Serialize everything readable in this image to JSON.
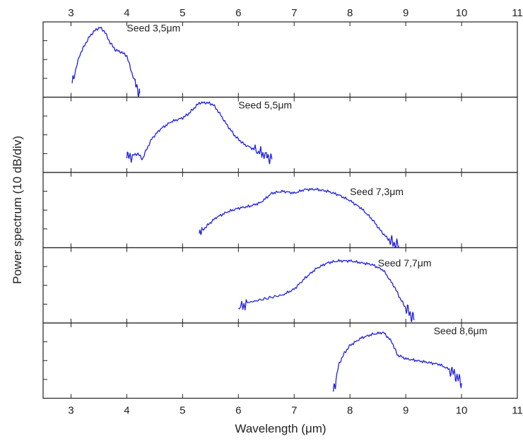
{
  "chart_data": {
    "type": "line",
    "xlabel": "Wavelength (μm)",
    "ylabel": "Power spectrum (10 dB/div)",
    "xlim": [
      2.5,
      11
    ],
    "xticks": [
      3,
      4,
      5,
      6,
      7,
      8,
      9,
      10,
      11
    ],
    "xtick_labels": [
      "3",
      "4",
      "5",
      "6",
      "7",
      "8",
      "9",
      "10",
      "11"
    ],
    "ylim": [
      0,
      40
    ],
    "ytick_step": 10,
    "color": "#1f1fe0",
    "panels": [
      {
        "label": "Seed 3,5μm",
        "label_x": 4.0,
        "label_y": 35,
        "series": {
          "x": [
            3.02,
            3.05,
            3.08,
            3.15,
            3.25,
            3.35,
            3.45,
            3.52,
            3.6,
            3.7,
            3.8,
            3.9,
            4.0,
            4.05,
            4.1,
            4.15,
            4.2,
            4.23
          ],
          "y": [
            8,
            10,
            14,
            22,
            28,
            33,
            36,
            37,
            35,
            29,
            25,
            24,
            22,
            17,
            12,
            8,
            4,
            2
          ]
        }
      },
      {
        "label": "Seed 5,5μm",
        "label_x": 6.0,
        "label_y": 34,
        "series": {
          "x": [
            4.0,
            4.1,
            4.2,
            4.28,
            4.35,
            4.45,
            4.6,
            4.8,
            5.0,
            5.1,
            5.2,
            5.3,
            5.45,
            5.55,
            5.65,
            5.8,
            5.95,
            6.1,
            6.3,
            6.5,
            6.6
          ],
          "y": [
            8,
            9,
            10,
            7,
            12,
            18,
            23,
            27,
            29,
            31,
            34,
            37,
            37,
            36,
            32,
            25,
            19,
            15,
            12,
            9,
            7
          ]
        }
      },
      {
        "label": "Seed 7,3μm",
        "label_x": 8.0,
        "label_y": 28,
        "series": {
          "x": [
            5.3,
            5.35,
            5.45,
            5.6,
            5.8,
            6.0,
            6.2,
            6.4,
            6.6,
            6.8,
            7.0,
            7.2,
            7.4,
            7.6,
            7.8,
            8.0,
            8.2,
            8.4,
            8.55,
            8.7,
            8.8,
            8.88
          ],
          "y": [
            8,
            9,
            12,
            16,
            19,
            21,
            22,
            24,
            29,
            30,
            29,
            31,
            31,
            30,
            28,
            25,
            21,
            15,
            9,
            4,
            2,
            1
          ]
        }
      },
      {
        "label": "Seed 7,7μm",
        "label_x": 8.5,
        "label_y": 30,
        "series": {
          "x": [
            6.0,
            6.2,
            6.5,
            6.8,
            7.0,
            7.2,
            7.4,
            7.6,
            7.8,
            8.0,
            8.2,
            8.4,
            8.6,
            8.8,
            8.9,
            9.0,
            9.1,
            9.15
          ],
          "y": [
            8,
            11,
            13,
            15,
            18,
            24,
            29,
            32,
            33,
            33,
            32,
            31,
            28,
            19,
            13,
            8,
            4,
            2
          ]
        }
      },
      {
        "label": "Seed 8,6μm",
        "label_x": 9.5,
        "label_y": 34,
        "series": {
          "x": [
            7.7,
            7.75,
            7.8,
            7.9,
            8.0,
            8.2,
            8.4,
            8.6,
            8.75,
            8.85,
            9.0,
            9.2,
            9.4,
            9.6,
            9.8,
            9.9,
            10.0
          ],
          "y": [
            4,
            10,
            18,
            24,
            28,
            32,
            34,
            35,
            30,
            23,
            21,
            20,
            19,
            18,
            15,
            12,
            8
          ]
        }
      }
    ]
  }
}
